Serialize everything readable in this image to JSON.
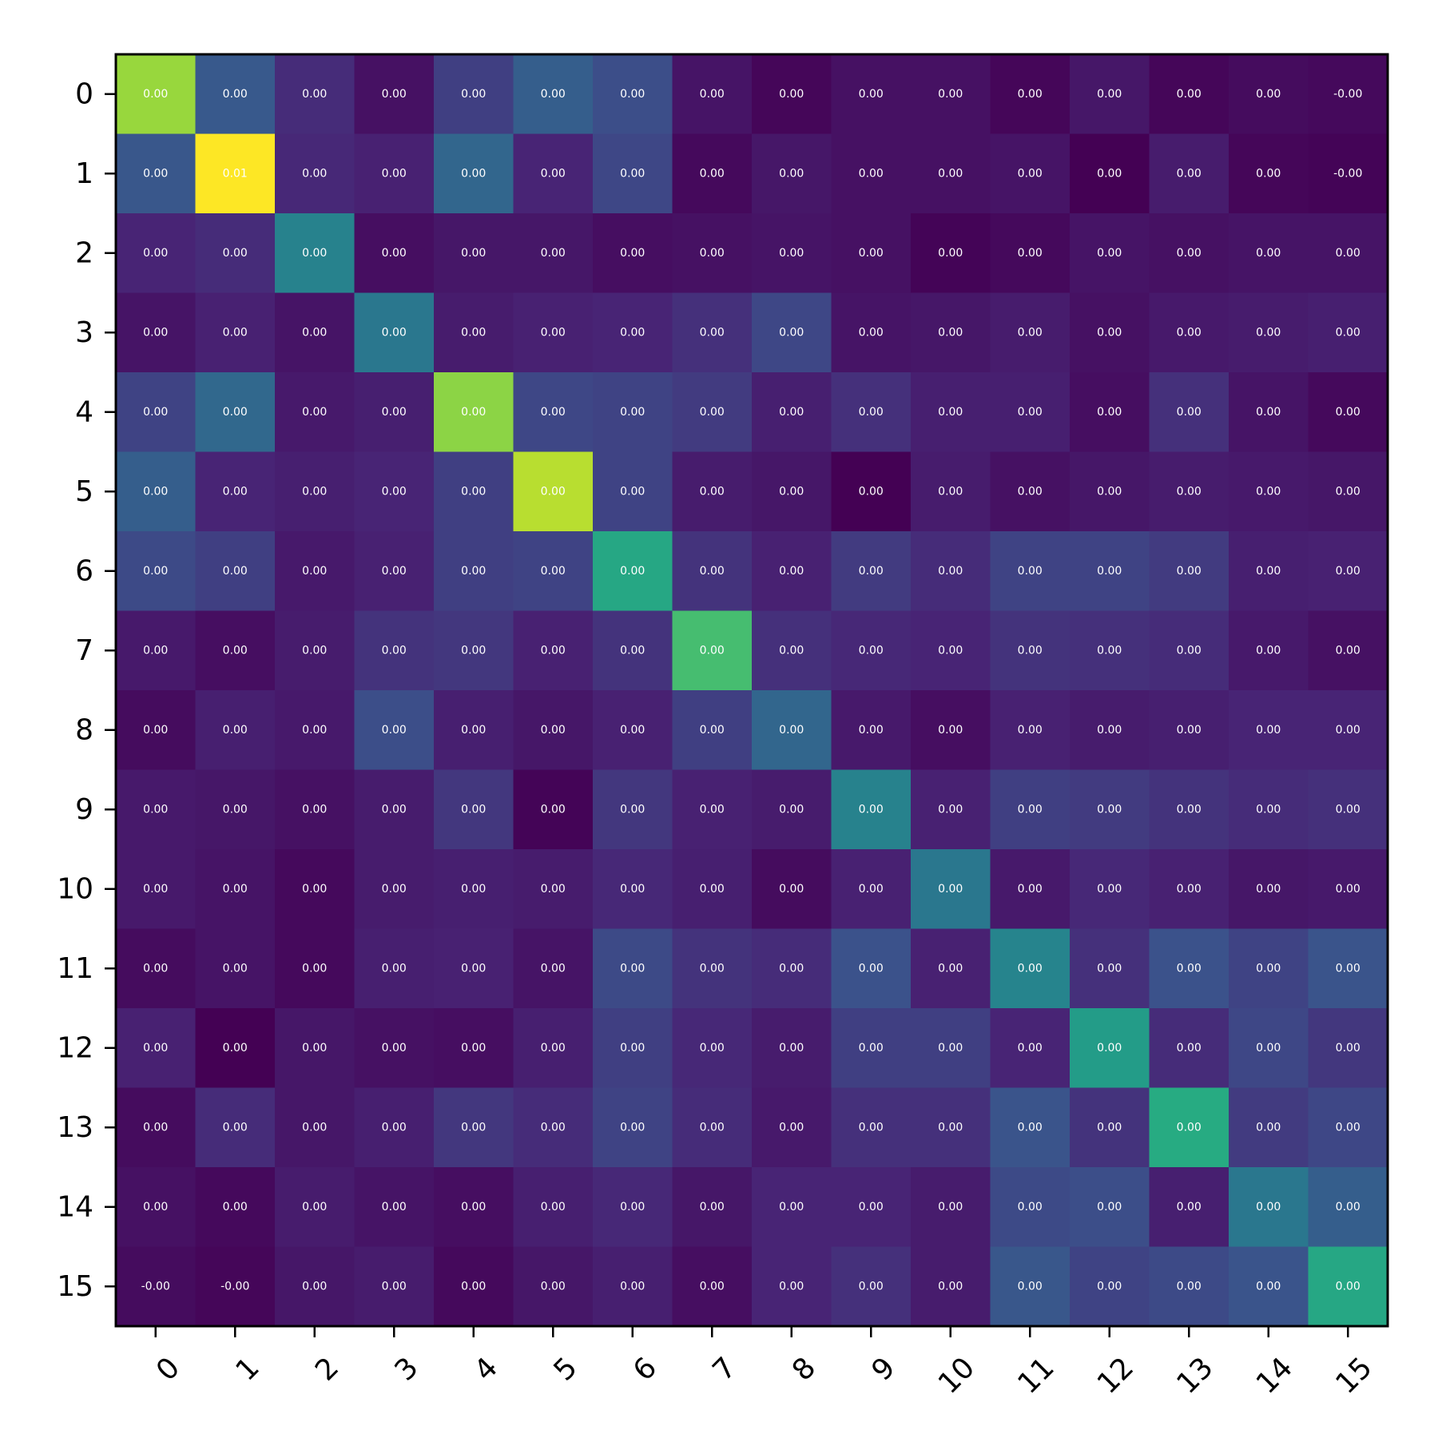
{
  "chart_data": {
    "type": "heatmap",
    "title": "",
    "xlabel": "",
    "ylabel": "",
    "colormap": "viridis",
    "x_categories": [
      "0",
      "1",
      "2",
      "3",
      "4",
      "5",
      "6",
      "7",
      "8",
      "9",
      "10",
      "11",
      "12",
      "13",
      "14",
      "15"
    ],
    "y_categories": [
      "0",
      "1",
      "2",
      "3",
      "4",
      "5",
      "6",
      "7",
      "8",
      "9",
      "10",
      "11",
      "12",
      "13",
      "14",
      "15"
    ],
    "values": [
      [
        0.85,
        0.28,
        0.15,
        0.06,
        0.2,
        0.3,
        0.24,
        0.07,
        0.02,
        0.06,
        0.06,
        0.02,
        0.08,
        0.02,
        0.04,
        0.03
      ],
      [
        0.27,
        1.0,
        0.14,
        0.12,
        0.33,
        0.13,
        0.22,
        0.03,
        0.08,
        0.06,
        0.06,
        0.07,
        0.0,
        0.1,
        0.02,
        0.01
      ],
      [
        0.13,
        0.15,
        0.44,
        0.05,
        0.08,
        0.08,
        0.05,
        0.06,
        0.07,
        0.06,
        0.01,
        0.03,
        0.07,
        0.06,
        0.07,
        0.07
      ],
      [
        0.07,
        0.12,
        0.07,
        0.4,
        0.1,
        0.12,
        0.13,
        0.16,
        0.22,
        0.07,
        0.08,
        0.1,
        0.06,
        0.09,
        0.1,
        0.11
      ],
      [
        0.21,
        0.34,
        0.09,
        0.11,
        0.83,
        0.22,
        0.21,
        0.19,
        0.11,
        0.16,
        0.11,
        0.11,
        0.05,
        0.16,
        0.07,
        0.03
      ],
      [
        0.3,
        0.13,
        0.11,
        0.13,
        0.2,
        0.9,
        0.21,
        0.1,
        0.08,
        0.0,
        0.1,
        0.06,
        0.08,
        0.1,
        0.09,
        0.08
      ],
      [
        0.23,
        0.2,
        0.09,
        0.12,
        0.2,
        0.21,
        0.6,
        0.17,
        0.12,
        0.19,
        0.15,
        0.21,
        0.21,
        0.19,
        0.11,
        0.12
      ],
      [
        0.09,
        0.05,
        0.1,
        0.17,
        0.18,
        0.12,
        0.17,
        0.7,
        0.16,
        0.14,
        0.13,
        0.17,
        0.16,
        0.15,
        0.09,
        0.06
      ],
      [
        0.04,
        0.11,
        0.09,
        0.24,
        0.11,
        0.08,
        0.12,
        0.2,
        0.33,
        0.09,
        0.05,
        0.12,
        0.1,
        0.11,
        0.13,
        0.13
      ],
      [
        0.09,
        0.08,
        0.06,
        0.1,
        0.18,
        0.01,
        0.18,
        0.12,
        0.1,
        0.44,
        0.12,
        0.2,
        0.19,
        0.17,
        0.15,
        0.16
      ],
      [
        0.09,
        0.07,
        0.03,
        0.1,
        0.11,
        0.1,
        0.14,
        0.11,
        0.04,
        0.12,
        0.4,
        0.09,
        0.14,
        0.12,
        0.08,
        0.09
      ],
      [
        0.04,
        0.07,
        0.03,
        0.11,
        0.12,
        0.07,
        0.23,
        0.17,
        0.15,
        0.25,
        0.12,
        0.45,
        0.16,
        0.25,
        0.21,
        0.26
      ],
      [
        0.12,
        0.0,
        0.08,
        0.06,
        0.05,
        0.11,
        0.2,
        0.14,
        0.1,
        0.2,
        0.2,
        0.13,
        0.55,
        0.15,
        0.22,
        0.18
      ],
      [
        0.04,
        0.15,
        0.08,
        0.11,
        0.18,
        0.15,
        0.21,
        0.15,
        0.09,
        0.16,
        0.16,
        0.26,
        0.17,
        0.62,
        0.19,
        0.22
      ],
      [
        0.06,
        0.03,
        0.1,
        0.07,
        0.05,
        0.11,
        0.14,
        0.08,
        0.13,
        0.13,
        0.1,
        0.23,
        0.24,
        0.11,
        0.4,
        0.3
      ],
      [
        0.04,
        0.02,
        0.08,
        0.1,
        0.03,
        0.08,
        0.11,
        0.05,
        0.13,
        0.16,
        0.1,
        0.27,
        0.21,
        0.23,
        0.26,
        0.6
      ]
    ],
    "cell_labels": [
      [
        "0.00",
        "0.00",
        "0.00",
        "0.00",
        "0.00",
        "0.00",
        "0.00",
        "0.00",
        "0.00",
        "0.00",
        "0.00",
        "0.00",
        "0.00",
        "0.00",
        "0.00",
        "-0.00"
      ],
      [
        "0.00",
        "0.01",
        "0.00",
        "0.00",
        "0.00",
        "0.00",
        "0.00",
        "0.00",
        "0.00",
        "0.00",
        "0.00",
        "0.00",
        "0.00",
        "0.00",
        "0.00",
        "-0.00"
      ],
      [
        "0.00",
        "0.00",
        "0.00",
        "0.00",
        "0.00",
        "0.00",
        "0.00",
        "0.00",
        "0.00",
        "0.00",
        "0.00",
        "0.00",
        "0.00",
        "0.00",
        "0.00",
        "0.00"
      ],
      [
        "0.00",
        "0.00",
        "0.00",
        "0.00",
        "0.00",
        "0.00",
        "0.00",
        "0.00",
        "0.00",
        "0.00",
        "0.00",
        "0.00",
        "0.00",
        "0.00",
        "0.00",
        "0.00"
      ],
      [
        "0.00",
        "0.00",
        "0.00",
        "0.00",
        "0.00",
        "0.00",
        "0.00",
        "0.00",
        "0.00",
        "0.00",
        "0.00",
        "0.00",
        "0.00",
        "0.00",
        "0.00",
        "0.00"
      ],
      [
        "0.00",
        "0.00",
        "0.00",
        "0.00",
        "0.00",
        "0.00",
        "0.00",
        "0.00",
        "0.00",
        "0.00",
        "0.00",
        "0.00",
        "0.00",
        "0.00",
        "0.00",
        "0.00"
      ],
      [
        "0.00",
        "0.00",
        "0.00",
        "0.00",
        "0.00",
        "0.00",
        "0.00",
        "0.00",
        "0.00",
        "0.00",
        "0.00",
        "0.00",
        "0.00",
        "0.00",
        "0.00",
        "0.00"
      ],
      [
        "0.00",
        "0.00",
        "0.00",
        "0.00",
        "0.00",
        "0.00",
        "0.00",
        "0.00",
        "0.00",
        "0.00",
        "0.00",
        "0.00",
        "0.00",
        "0.00",
        "0.00",
        "0.00"
      ],
      [
        "0.00",
        "0.00",
        "0.00",
        "0.00",
        "0.00",
        "0.00",
        "0.00",
        "0.00",
        "0.00",
        "0.00",
        "0.00",
        "0.00",
        "0.00",
        "0.00",
        "0.00",
        "0.00"
      ],
      [
        "0.00",
        "0.00",
        "0.00",
        "0.00",
        "0.00",
        "0.00",
        "0.00",
        "0.00",
        "0.00",
        "0.00",
        "0.00",
        "0.00",
        "0.00",
        "0.00",
        "0.00",
        "0.00"
      ],
      [
        "0.00",
        "0.00",
        "0.00",
        "0.00",
        "0.00",
        "0.00",
        "0.00",
        "0.00",
        "0.00",
        "0.00",
        "0.00",
        "0.00",
        "0.00",
        "0.00",
        "0.00",
        "0.00"
      ],
      [
        "0.00",
        "0.00",
        "0.00",
        "0.00",
        "0.00",
        "0.00",
        "0.00",
        "0.00",
        "0.00",
        "0.00",
        "0.00",
        "0.00",
        "0.00",
        "0.00",
        "0.00",
        "0.00"
      ],
      [
        "0.00",
        "0.00",
        "0.00",
        "0.00",
        "0.00",
        "0.00",
        "0.00",
        "0.00",
        "0.00",
        "0.00",
        "0.00",
        "0.00",
        "0.00",
        "0.00",
        "0.00",
        "0.00"
      ],
      [
        "0.00",
        "0.00",
        "0.00",
        "0.00",
        "0.00",
        "0.00",
        "0.00",
        "0.00",
        "0.00",
        "0.00",
        "0.00",
        "0.00",
        "0.00",
        "0.00",
        "0.00",
        "0.00"
      ],
      [
        "0.00",
        "0.00",
        "0.00",
        "0.00",
        "0.00",
        "0.00",
        "0.00",
        "0.00",
        "0.00",
        "0.00",
        "0.00",
        "0.00",
        "0.00",
        "0.00",
        "0.00",
        "0.00"
      ],
      [
        "-0.00",
        "-0.00",
        "0.00",
        "0.00",
        "0.00",
        "0.00",
        "0.00",
        "0.00",
        "0.00",
        "0.00",
        "0.00",
        "0.00",
        "0.00",
        "0.00",
        "0.00",
        "0.00"
      ]
    ],
    "legend": "none",
    "grid": false
  }
}
